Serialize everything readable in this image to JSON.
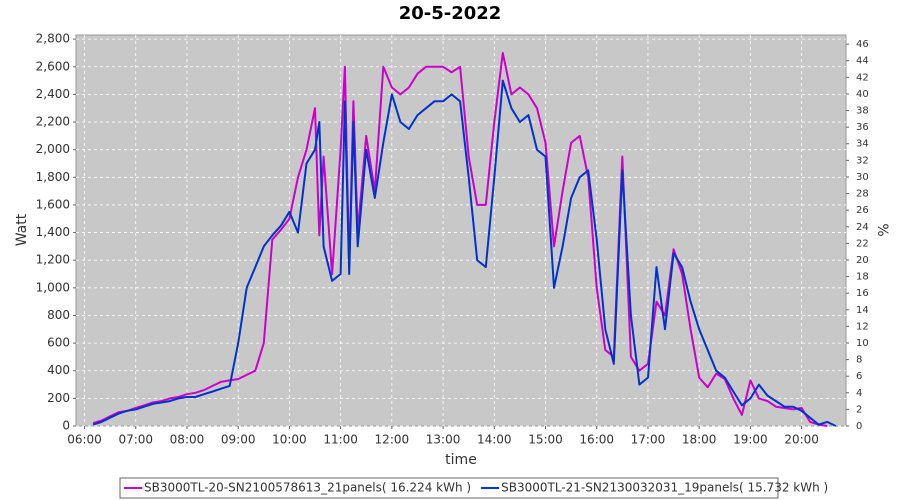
{
  "chart_data": {
    "type": "line",
    "title": "20-5-2022",
    "x_label": "time",
    "y_label": "Watt",
    "y2_label": "%",
    "grid": true,
    "legend": "bottom",
    "xlim": [
      "05:50",
      "20:52"
    ],
    "xticks": [
      "06:00",
      "07:00",
      "08:00",
      "09:00",
      "10:00",
      "11:00",
      "12:00",
      "13:00",
      "14:00",
      "15:00",
      "16:00",
      "17:00",
      "18:00",
      "19:00",
      "20:00"
    ],
    "ylim": [
      0,
      2830
    ],
    "yticks": [
      0,
      200,
      400,
      600,
      800,
      {
        "value": 1000,
        "label": "1,000"
      },
      {
        "value": 1200,
        "label": "1,200"
      },
      {
        "value": 1400,
        "label": "1,400"
      },
      {
        "value": 1600,
        "label": "1,600"
      },
      {
        "value": 1800,
        "label": "1,800"
      },
      {
        "value": 2000,
        "label": "2,000"
      },
      {
        "value": 2200,
        "label": "2,200"
      },
      {
        "value": 2400,
        "label": "2,400"
      },
      {
        "value": 2600,
        "label": "2,600"
      },
      {
        "value": 2800,
        "label": "2,800"
      }
    ],
    "y2lim": [
      0,
      47.1
    ],
    "y2ticks": [
      0,
      2,
      4,
      6,
      8,
      10,
      12,
      14,
      16,
      18,
      20,
      22,
      24,
      26,
      28,
      30,
      32,
      34,
      36,
      38,
      40,
      42,
      44,
      46
    ],
    "x": [
      "06:10",
      "06:20",
      "06:30",
      "06:40",
      "06:50",
      "07:00",
      "07:10",
      "07:20",
      "07:30",
      "07:40",
      "07:50",
      "08:00",
      "08:10",
      "08:20",
      "08:30",
      "08:40",
      "08:50",
      "09:00",
      "09:10",
      "09:20",
      "09:30",
      "09:40",
      "09:50",
      "10:00",
      "10:10",
      "10:20",
      "10:30",
      "10:35",
      "10:40",
      "10:50",
      "11:00",
      "11:05",
      "11:10",
      "11:15",
      "11:20",
      "11:30",
      "11:40",
      "11:50",
      "12:00",
      "12:10",
      "12:20",
      "12:30",
      "12:40",
      "12:50",
      "13:00",
      "13:10",
      "13:20",
      "13:30",
      "13:40",
      "13:50",
      "14:00",
      "14:10",
      "14:20",
      "14:30",
      "14:40",
      "14:50",
      "15:00",
      "15:10",
      "15:20",
      "15:30",
      "15:40",
      "15:50",
      "16:00",
      "16:10",
      "16:20",
      "16:30",
      "16:40",
      "16:50",
      "17:00",
      "17:10",
      "17:20",
      "17:30",
      "17:40",
      "17:50",
      "18:00",
      "18:10",
      "18:20",
      "18:30",
      "18:40",
      "18:50",
      "19:00",
      "19:10",
      "19:20",
      "19:30",
      "19:40",
      "19:50",
      "20:00",
      "20:10",
      "20:20",
      "20:30",
      "20:40"
    ],
    "series": [
      {
        "name": "SB3000TL-20-SN2100578613_21panels( 16.224 kWh )",
        "color": "#cc00cc",
        "values": [
          20,
          40,
          70,
          100,
          110,
          130,
          150,
          170,
          180,
          200,
          210,
          230,
          240,
          260,
          290,
          320,
          330,
          340,
          370,
          400,
          600,
          1350,
          1420,
          1500,
          1800,
          2000,
          2300,
          1380,
          1950,
          1100,
          2000,
          2600,
          1150,
          2350,
          1400,
          2100,
          1700,
          2600,
          2450,
          2400,
          2450,
          2550,
          2600,
          2600,
          2600,
          2560,
          2600,
          1950,
          1600,
          1600,
          2200,
          2700,
          2400,
          2450,
          2400,
          2300,
          2050,
          1300,
          1700,
          2050,
          2100,
          1800,
          1000,
          550,
          500,
          1950,
          500,
          400,
          450,
          900,
          800,
          1280,
          1100,
          700,
          350,
          280,
          380,
          340,
          200,
          80,
          330,
          200,
          180,
          140,
          130,
          120,
          130,
          30,
          10,
          0,
          null
        ]
      },
      {
        "name": "SB3000TL-21-SN2130032031_19panels( 15.732 kWh )",
        "color": "#0033cc",
        "values": [
          10,
          30,
          60,
          90,
          110,
          120,
          140,
          160,
          170,
          180,
          200,
          210,
          210,
          230,
          250,
          270,
          290,
          600,
          1000,
          1150,
          1300,
          1380,
          1450,
          1550,
          1400,
          1900,
          2000,
          2200,
          1300,
          1050,
          1100,
          2350,
          1100,
          2200,
          1300,
          2000,
          1650,
          2050,
          2400,
          2200,
          2150,
          2250,
          2300,
          2350,
          2350,
          2400,
          2350,
          1800,
          1200,
          1150,
          1800,
          2500,
          2300,
          2200,
          2250,
          2000,
          1950,
          1000,
          1300,
          1650,
          1800,
          1850,
          1350,
          700,
          450,
          1850,
          800,
          300,
          350,
          1150,
          700,
          1250,
          1150,
          900,
          700,
          550,
          400,
          350,
          250,
          150,
          200,
          300,
          220,
          180,
          140,
          140,
          110,
          60,
          10,
          30,
          0
        ]
      }
    ]
  }
}
